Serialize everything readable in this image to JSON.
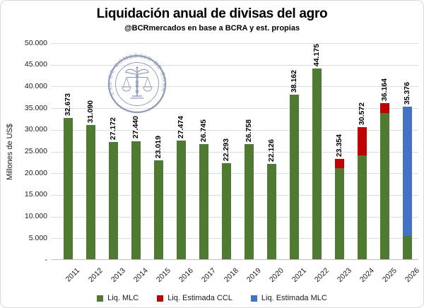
{
  "header": {
    "title": "Liquidación anual de divisas del agro",
    "subtitle": "@BCRmercados en base a BCRA y est. propias"
  },
  "watermark": {
    "text": "BOLSA DE COMERCIO DE ROSARIO",
    "icon": "caduceus-scales-seal",
    "color": "#8292b4"
  },
  "chart_data": {
    "type": "bar",
    "stacked": true,
    "title": "Liquidación anual de divisas del agro",
    "subtitle": "@BCRmercados en base a BCRA y est. propias",
    "xlabel": "",
    "ylabel": "Millones de US$",
    "ylim": [
      0,
      50000
    ],
    "ytick_step": 5000,
    "ytick_labels": [
      "50.000",
      "45.000",
      "40.000",
      "35.000",
      "30.000",
      "25.000",
      "20.000",
      "15.000",
      "10.000",
      "5.000",
      "-"
    ],
    "grid": true,
    "legend_position": "bottom",
    "categories": [
      "2011",
      "2012",
      "2013",
      "2014",
      "2015",
      "2016",
      "2017",
      "2018",
      "2019",
      "2020",
      "2021",
      "2022",
      "2023",
      "2024",
      "2025",
      "2026"
    ],
    "series": [
      {
        "name": "Liq. MLC",
        "color": "#4e7b31",
        "values": [
          32673,
          31090,
          27172,
          27440,
          23019,
          27474,
          26745,
          22293,
          26758,
          22126,
          38162,
          44175,
          21250,
          24050,
          33900,
          5500
        ]
      },
      {
        "name": "Liq. Estimada CCL",
        "color": "#c00000",
        "values": [
          0,
          0,
          0,
          0,
          0,
          0,
          0,
          0,
          0,
          0,
          0,
          0,
          2104,
          6522,
          2264,
          0
        ]
      },
      {
        "name": "Liq. Estimada MLC",
        "color": "#4472c4",
        "values": [
          0,
          0,
          0,
          0,
          0,
          0,
          0,
          0,
          0,
          0,
          0,
          0,
          0,
          0,
          0,
          29876
        ]
      }
    ],
    "total_labels": [
      "32.673",
      "31.090",
      "27.172",
      "27.440",
      "23.019",
      "27.474",
      "26.745",
      "22.293",
      "26.758",
      "22.126",
      "38.162",
      "44.175",
      "23.354",
      "30.572",
      "36.164",
      "35.376"
    ]
  },
  "colors": {
    "gridline": "#dcdcdc",
    "axis_line": "#c0c0c0",
    "frame_border": "#d9d9d9",
    "text": "#1a1a1a"
  }
}
